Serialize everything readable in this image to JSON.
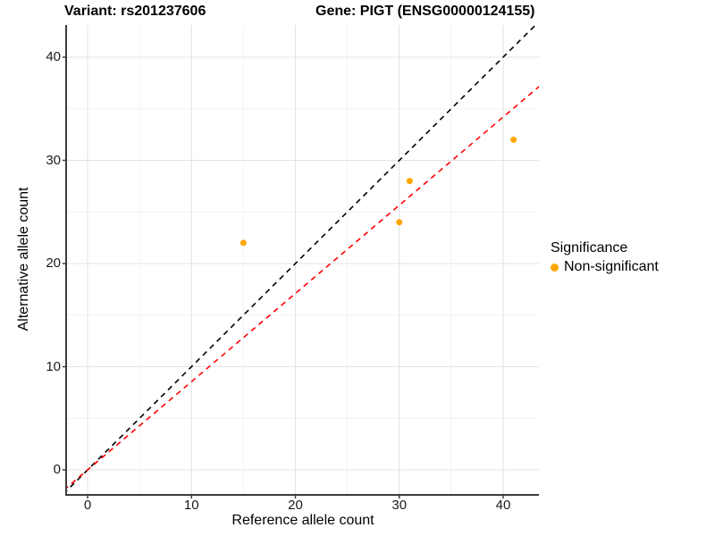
{
  "chart_data": {
    "type": "scatter",
    "title_left": "Variant: rs201237606",
    "title_right": "Gene: PIGT (ENSG00000124155)",
    "xlabel": "Reference allele count",
    "ylabel": "Alternative allele count",
    "x_ticks": [
      0,
      10,
      20,
      30,
      40
    ],
    "y_ticks": [
      0,
      10,
      20,
      30,
      40
    ],
    "x_minor_ticks": [
      5,
      15,
      25,
      35
    ],
    "y_minor_ticks": [
      5,
      15,
      25,
      35
    ],
    "xlim": [
      -2,
      43.4
    ],
    "ylim": [
      -2.3,
      43.1
    ],
    "grid": true,
    "series": [
      {
        "name": "Non-significant",
        "color": "#FFA500",
        "points": [
          {
            "x": 15,
            "y": 22
          },
          {
            "x": 30,
            "y": 24
          },
          {
            "x": 31,
            "y": 28
          },
          {
            "x": 41,
            "y": 32
          }
        ]
      }
    ],
    "lines": [
      {
        "name": "identity-line",
        "slope": 1,
        "intercept": 0,
        "color": "#000000",
        "style": "dashed"
      },
      {
        "name": "fit-line",
        "slope": 0.855,
        "intercept": 0,
        "color": "#FF0000",
        "style": "dashed"
      }
    ],
    "legend": {
      "title": "Significance",
      "position": "right",
      "items": [
        {
          "label": "Non-significant",
          "color": "#FFA500"
        }
      ]
    },
    "grid_major_color": "#E3E3E3",
    "grid_minor_color": "#F2F2F2",
    "axis_line_color": "#3c3c3c"
  }
}
